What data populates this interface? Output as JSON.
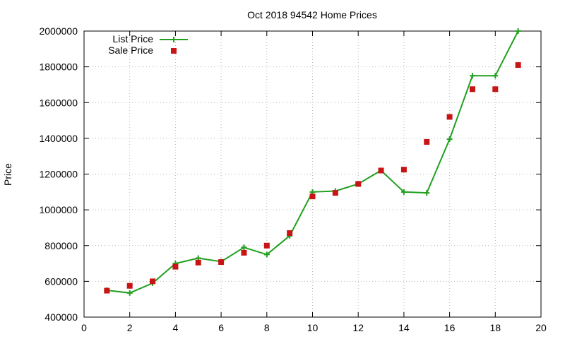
{
  "chart_data": {
    "type": "line",
    "title": "Oct 2018 94542 Home Prices",
    "xlabel": "",
    "ylabel": "Price",
    "xlim": [
      0,
      20
    ],
    "ylim": [
      400000,
      2000000
    ],
    "xticks": [
      0,
      2,
      4,
      6,
      8,
      10,
      12,
      14,
      16,
      18,
      20
    ],
    "yticks": [
      400000,
      600000,
      800000,
      1000000,
      1200000,
      1400000,
      1600000,
      1800000,
      2000000
    ],
    "grid": true,
    "legend_position": "top-left",
    "series": [
      {
        "name": "List Price",
        "style": "line-with-plus-markers",
        "color": "#1fa01f",
        "x": [
          1,
          2,
          3,
          4,
          5,
          6,
          7,
          8,
          9,
          10,
          11,
          12,
          13,
          14,
          15,
          16,
          17,
          18,
          19
        ],
        "y": [
          550000,
          535000,
          590000,
          700000,
          730000,
          710000,
          790000,
          750000,
          855000,
          1100000,
          1105000,
          1145000,
          1220000,
          1100000,
          1095000,
          1395000,
          1750000,
          1750000,
          2000000
        ]
      },
      {
        "name": "Sale Price",
        "style": "square-markers",
        "color": "#c81414",
        "x": [
          1,
          2,
          3,
          4,
          5,
          6,
          7,
          8,
          9,
          10,
          11,
          12,
          13,
          14,
          15,
          16,
          17,
          18,
          19
        ],
        "y": [
          548000,
          575000,
          600000,
          682000,
          705000,
          708000,
          760000,
          800000,
          870000,
          1075000,
          1095000,
          1145000,
          1220000,
          1225000,
          1380000,
          1520000,
          1675000,
          1675000,
          1810000
        ]
      }
    ]
  }
}
